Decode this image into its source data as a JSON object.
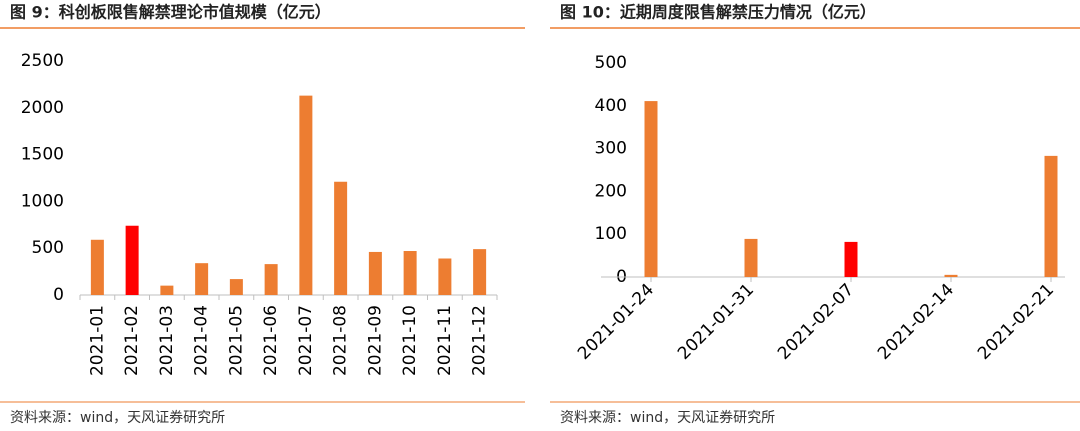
{
  "chart_data": [
    {
      "type": "bar",
      "title": "图 9：科创板限售解禁理论市值规模（亿元）",
      "source": "资料来源：wind，天风证券研究所",
      "categories": [
        "2021-01",
        "2021-02",
        "2021-03",
        "2021-04",
        "2021-05",
        "2021-06",
        "2021-07",
        "2021-08",
        "2021-09",
        "2021-10",
        "2021-11",
        "2021-12"
      ],
      "values": [
        590,
        740,
        100,
        340,
        170,
        330,
        2130,
        1210,
        460,
        470,
        390,
        490
      ],
      "colors": [
        "#ed7d31",
        "#ff0000",
        "#ed7d31",
        "#ed7d31",
        "#ed7d31",
        "#ed7d31",
        "#ed7d31",
        "#ed7d31",
        "#ed7d31",
        "#ed7d31",
        "#ed7d31",
        "#ed7d31"
      ],
      "ylim": [
        0,
        2500
      ],
      "yticks": [
        0,
        500,
        1000,
        1500,
        2000,
        2500
      ]
    },
    {
      "type": "bar",
      "title": "图 10：近期周度限售解禁压力情况（亿元）",
      "source": "资料来源：wind，天风证券研究所",
      "categories": [
        "2021-01-24",
        "2021-01-31",
        "2021-02-07",
        "2021-02-14",
        "2021-02-21"
      ],
      "values": [
        411,
        89,
        82,
        5,
        283
      ],
      "colors": [
        "#ed7d31",
        "#ed7d31",
        "#ff0000",
        "#ed7d31",
        "#ed7d31"
      ],
      "ylim": [
        0,
        500
      ],
      "yticks": [
        0,
        100,
        200,
        300,
        400,
        500
      ]
    }
  ]
}
